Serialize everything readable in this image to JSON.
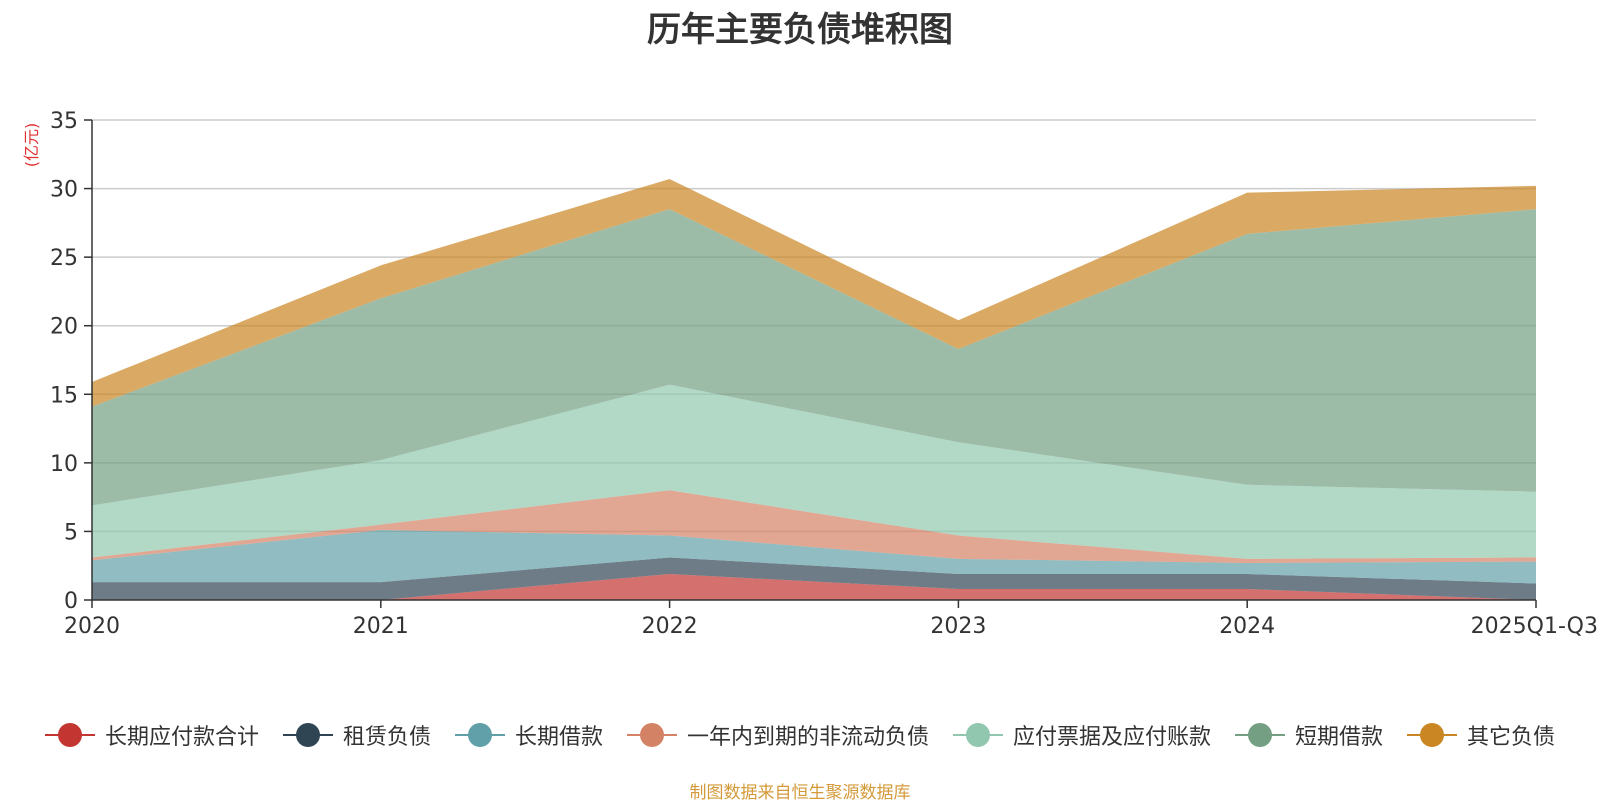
{
  "chart_data": {
    "type": "area",
    "stacked": true,
    "title": "历年主要负债堆积图",
    "ylabel": "(亿元)",
    "xlabel": "",
    "ylim": [
      0,
      35
    ],
    "yticks": [
      0,
      5,
      10,
      15,
      20,
      25,
      30,
      35
    ],
    "grid": true,
    "legend_position": "bottom",
    "categories": [
      "2020",
      "2021",
      "2022",
      "2023",
      "2024",
      "2025Q1-Q3"
    ],
    "series": [
      {
        "name": "长期应付款合计",
        "color": "#c23531",
        "values": [
          0,
          0,
          1.9,
          0.8,
          0.8,
          0
        ]
      },
      {
        "name": "租赁负债",
        "color": "#2f4554",
        "values": [
          1.3,
          1.3,
          1.2,
          1.1,
          1.1,
          1.2
        ]
      },
      {
        "name": "长期借款",
        "color": "#61a0a8",
        "values": [
          1.6,
          3.8,
          1.6,
          1.1,
          0.8,
          1.6
        ]
      },
      {
        "name": "一年内到期的非流动负债",
        "color": "#d48265",
        "values": [
          0.2,
          0.4,
          3.3,
          1.7,
          0.3,
          0.3
        ]
      },
      {
        "name": "应付票据及应付账款",
        "color": "#91c7ae",
        "values": [
          3.8,
          4.7,
          7.7,
          6.8,
          5.4,
          4.8
        ]
      },
      {
        "name": "短期借款",
        "color": "#749f83",
        "values": [
          7.2,
          11.8,
          12.8,
          6.8,
          18.3,
          20.6
        ]
      },
      {
        "name": "其它负债",
        "color": "#ca8622",
        "values": [
          1.8,
          2.4,
          2.2,
          2.1,
          3.0,
          1.7
        ]
      }
    ]
  },
  "source_note": "制图数据来自恒生聚源数据库"
}
